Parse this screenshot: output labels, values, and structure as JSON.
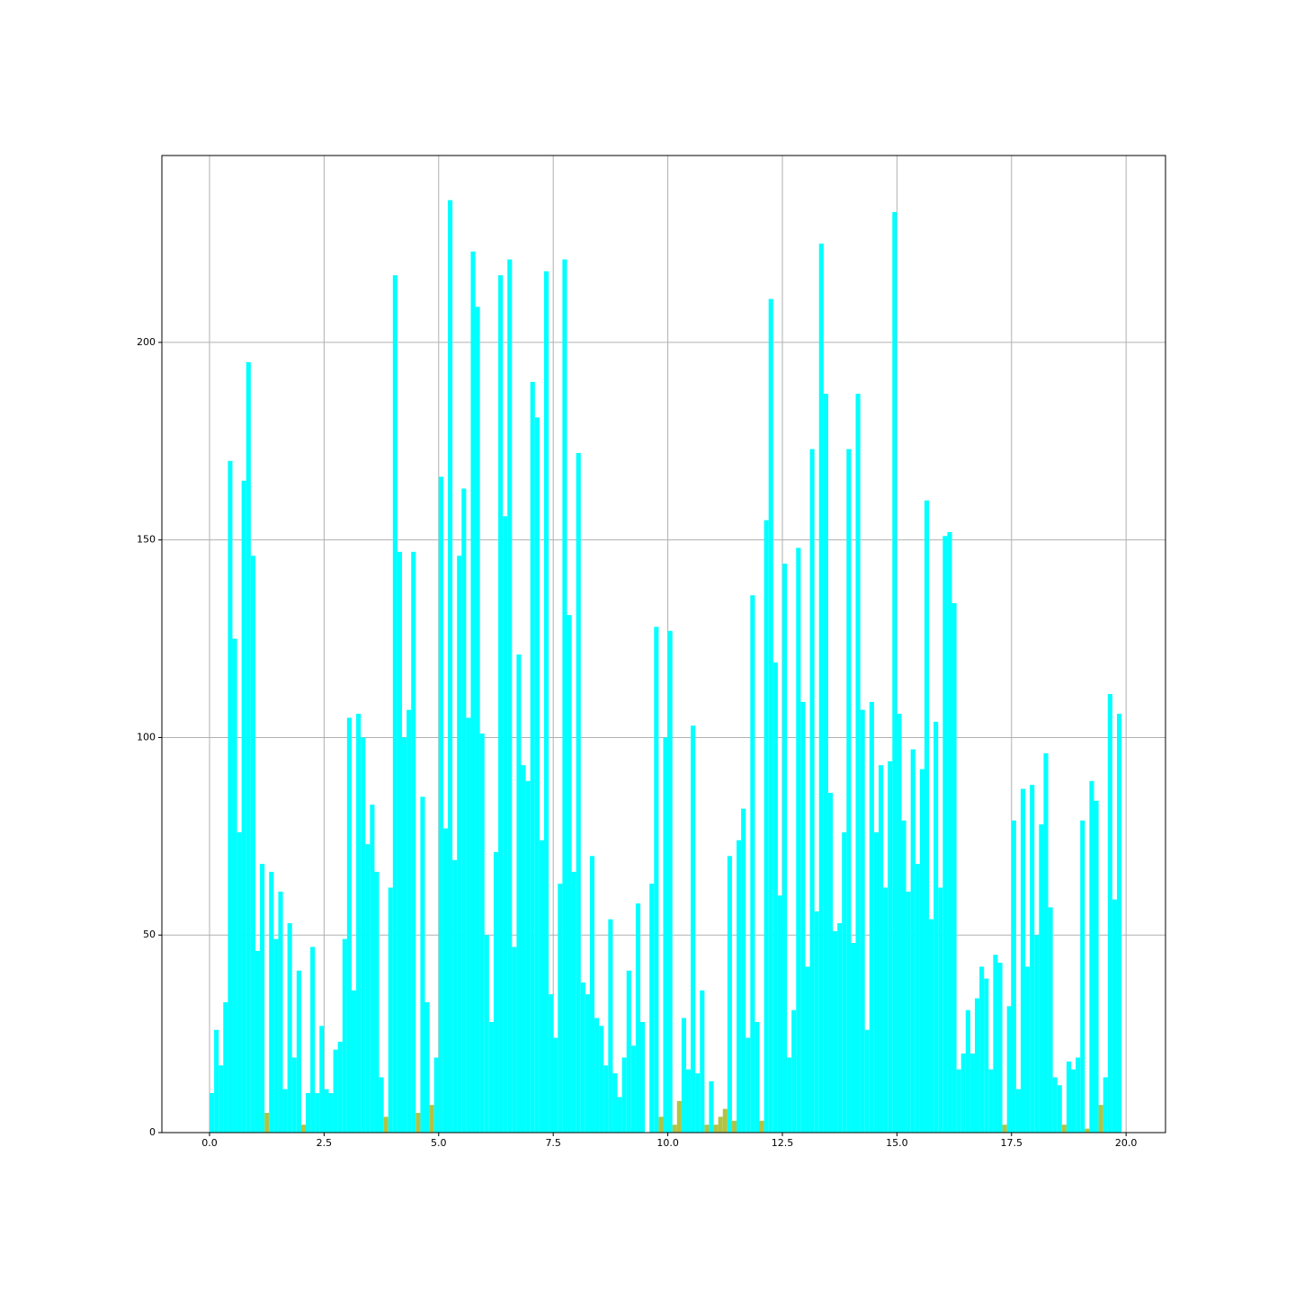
{
  "chart_data": {
    "type": "histogram",
    "bins": [
      0,
      0.1,
      0.2,
      0.3,
      0.4,
      0.5,
      0.6,
      0.7,
      0.8,
      0.9,
      1,
      1.1,
      1.2,
      1.3,
      1.4,
      1.5,
      1.6,
      1.7,
      1.8,
      1.9,
      2,
      2.1,
      2.2,
      2.3,
      2.4,
      2.5,
      2.6,
      2.7,
      2.8,
      2.9,
      3,
      3.1,
      3.2,
      3.3,
      3.4,
      3.5,
      3.6,
      3.7,
      3.8,
      3.9,
      4,
      4.1,
      4.2,
      4.3,
      4.4,
      4.5,
      4.6,
      4.7,
      4.8,
      4.9,
      5,
      5.1,
      5.2,
      5.3,
      5.4,
      5.5,
      5.6,
      5.7,
      5.8,
      5.9,
      6,
      6.1,
      6.2,
      6.3,
      6.4,
      6.5,
      6.6,
      6.7,
      6.8,
      6.9,
      7,
      7.1,
      7.2,
      7.3,
      7.4,
      7.5,
      7.6,
      7.7,
      7.8,
      7.9,
      8,
      8.1,
      8.2,
      8.3,
      8.4,
      8.5,
      8.6,
      8.7,
      8.8,
      8.9,
      9,
      9.1,
      9.2,
      9.3,
      9.4,
      9.5,
      9.6,
      9.7,
      9.8,
      9.9,
      10,
      10.1,
      10.2,
      10.3,
      10.4,
      10.5,
      10.6,
      10.7,
      10.8,
      10.9,
      11,
      11.1,
      11.2,
      11.3,
      11.4,
      11.5,
      11.6,
      11.7,
      11.8,
      11.9,
      12,
      12.1,
      12.2,
      12.3,
      12.4,
      12.5,
      12.6,
      12.7,
      12.8,
      12.9,
      13,
      13.1,
      13.2,
      13.3,
      13.4,
      13.5,
      13.6,
      13.7,
      13.8,
      13.9,
      14,
      14.1,
      14.2,
      14.3,
      14.4,
      14.5,
      14.6,
      14.7,
      14.8,
      14.9,
      15,
      15.1,
      15.2,
      15.3,
      15.4,
      15.5,
      15.6,
      15.7,
      15.8,
      15.9,
      16,
      16.1,
      16.2,
      16.3,
      16.4,
      16.5,
      16.6,
      16.7,
      16.8,
      16.9,
      17,
      17.1,
      17.2,
      17.3,
      17.4,
      17.5,
      17.6,
      17.7,
      17.8,
      17.9,
      18,
      18.1,
      18.2,
      18.3,
      18.4,
      18.5,
      18.6,
      18.7,
      18.8,
      18.9,
      19,
      19.1,
      19.2,
      19.3,
      19.4,
      19.5,
      19.6,
      19.7,
      19.8,
      19.9,
      20
    ],
    "series": [
      {
        "color": "#b2c244",
        "values": [
          0,
          0,
          0,
          0,
          0,
          0,
          0,
          0,
          0,
          0,
          0,
          0,
          5,
          0,
          0,
          0,
          0,
          0,
          0,
          0,
          2,
          0,
          0,
          0,
          0,
          0,
          0,
          0,
          0,
          0,
          0,
          0,
          0,
          0,
          0,
          0,
          0,
          0,
          4,
          0,
          0,
          0,
          0,
          0,
          0,
          5,
          0,
          0,
          7,
          0,
          0,
          0,
          0,
          0,
          0,
          0,
          0,
          0,
          0,
          0,
          0,
          0,
          0,
          0,
          0,
          0,
          0,
          0,
          0,
          0,
          0,
          0,
          0,
          0,
          0,
          0,
          0,
          0,
          0,
          0,
          0,
          0,
          0,
          0,
          0,
          0,
          0,
          0,
          0,
          0,
          0,
          0,
          0,
          0,
          0,
          0,
          0,
          0,
          4,
          0,
          0,
          2,
          8,
          0,
          0,
          0,
          0,
          0,
          2,
          0,
          2,
          4,
          6,
          0,
          3,
          0,
          0,
          0,
          0,
          0,
          3,
          0,
          0,
          0,
          0,
          0,
          0,
          0,
          0,
          0,
          0,
          0,
          0,
          0,
          0,
          0,
          0,
          0,
          0,
          0,
          0,
          0,
          0,
          0,
          0,
          0,
          0,
          0,
          0,
          0,
          0,
          0,
          0,
          0,
          0,
          0,
          0,
          0,
          0,
          0,
          0,
          0,
          0,
          0,
          0,
          0,
          0,
          0,
          0,
          0,
          0,
          0,
          0,
          2,
          0,
          0,
          0,
          0,
          0,
          0,
          0,
          0,
          0,
          0,
          0,
          0,
          2,
          0,
          0,
          0,
          0,
          1,
          0,
          0,
          7,
          0,
          0,
          0,
          0,
          0
        ]
      },
      {
        "color": "#00ffff",
        "values": [
          10,
          26,
          17,
          33,
          170,
          125,
          76,
          165,
          195,
          146,
          46,
          68,
          0,
          66,
          49,
          61,
          11,
          53,
          19,
          41,
          0,
          10,
          47,
          10,
          27,
          11,
          10,
          21,
          23,
          49,
          105,
          36,
          106,
          100,
          73,
          83,
          66,
          14,
          0,
          62,
          217,
          147,
          100,
          107,
          147,
          0,
          85,
          33,
          0,
          19,
          166,
          77,
          236,
          69,
          146,
          163,
          105,
          223,
          209,
          101,
          50,
          28,
          71,
          217,
          156,
          221,
          47,
          121,
          93,
          89,
          190,
          181,
          74,
          218,
          35,
          24,
          63,
          221,
          131,
          66,
          172,
          38,
          35,
          70,
          29,
          27,
          17,
          54,
          15,
          9,
          19,
          41,
          22,
          58,
          28,
          0,
          63,
          128,
          0,
          100,
          127,
          0,
          0,
          29,
          16,
          103,
          15,
          36,
          0,
          13,
          0,
          0,
          0,
          70,
          0,
          74,
          82,
          24,
          136,
          28,
          0,
          155,
          211,
          119,
          60,
          144,
          19,
          31,
          148,
          109,
          42,
          173,
          56,
          225,
          187,
          86,
          51,
          53,
          76,
          173,
          48,
          187,
          107,
          26,
          109,
          76,
          93,
          62,
          94,
          233,
          106,
          79,
          61,
          97,
          68,
          92,
          160,
          54,
          104,
          62,
          151,
          152,
          134,
          16,
          20,
          31,
          20,
          34,
          42,
          39,
          16,
          45,
          43,
          0,
          32,
          79,
          11,
          87,
          42,
          88,
          50,
          78,
          96,
          57,
          14,
          12,
          0,
          18,
          16,
          19,
          79,
          0,
          89,
          84,
          0,
          14,
          111,
          59,
          106,
          0
        ]
      }
    ],
    "xlim": [
      -1.04,
      20.86
    ],
    "ylim": [
      0,
      247.3
    ],
    "xticks": [
      {
        "value": 0,
        "label": "0.0"
      },
      {
        "value": 2.5,
        "label": "2.5"
      },
      {
        "value": 5,
        "label": "5.0"
      },
      {
        "value": 7.5,
        "label": "7.5"
      },
      {
        "value": 10,
        "label": "10.0"
      },
      {
        "value": 12.5,
        "label": "12.5"
      },
      {
        "value": 15,
        "label": "15.0"
      },
      {
        "value": 17.5,
        "label": "17.5"
      },
      {
        "value": 20,
        "label": "20.0"
      }
    ],
    "yticks": [
      0,
      50,
      100,
      150,
      200
    ],
    "grid": true
  }
}
